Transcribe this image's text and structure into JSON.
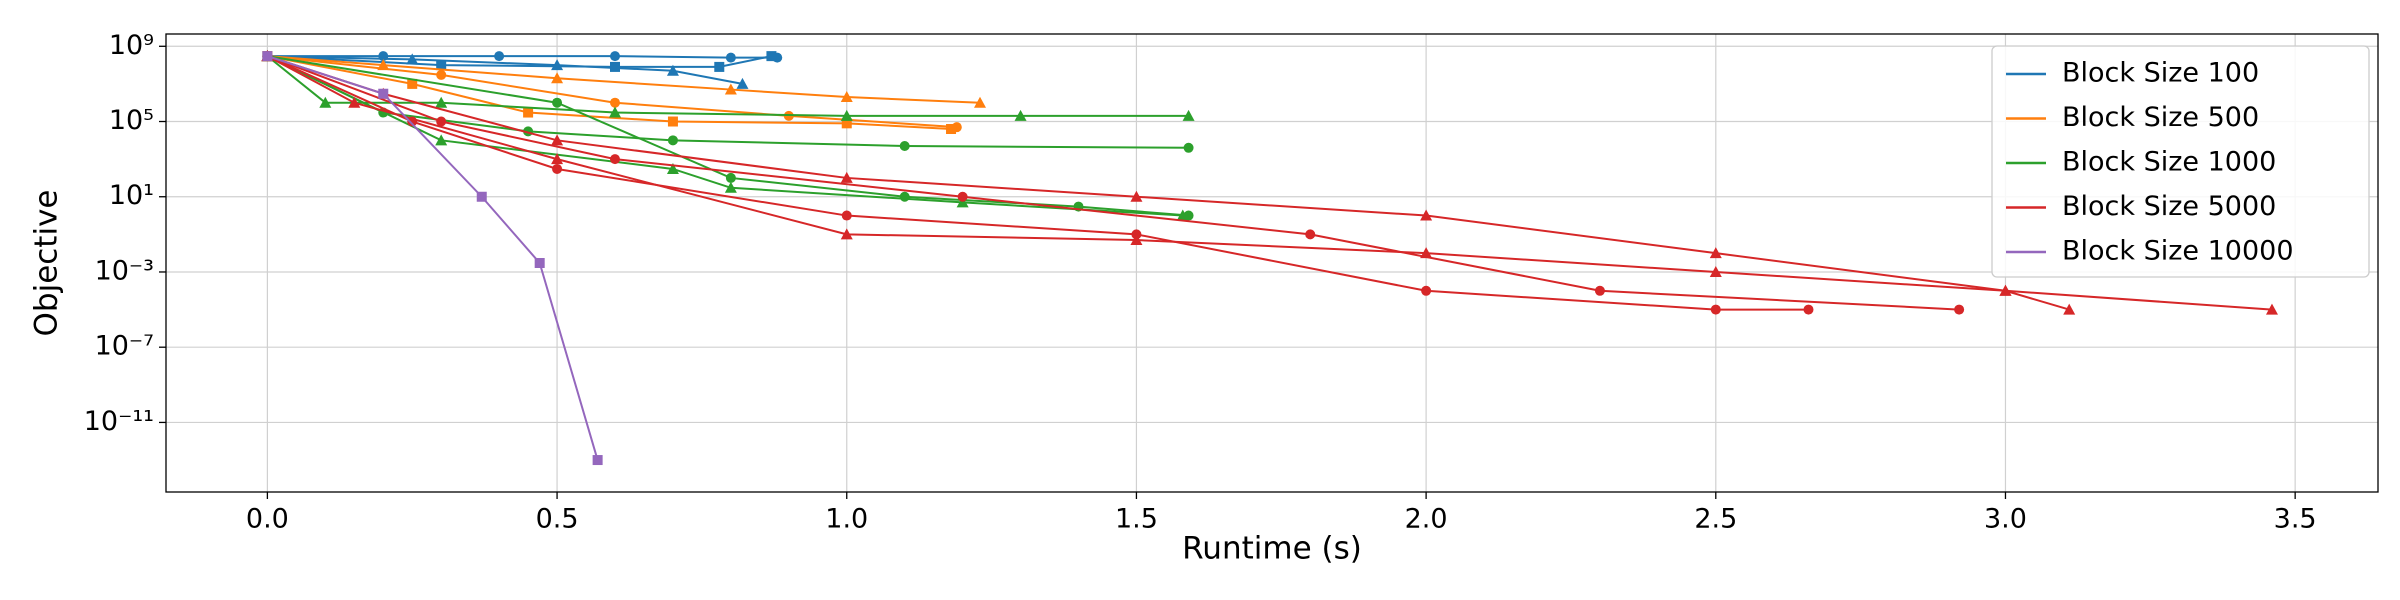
{
  "chart_data": {
    "type": "line",
    "xlabel": "Runtime (s)",
    "ylabel": "Objective",
    "xlim": [
      -0.175,
      3.643
    ],
    "ylim": [
      2e-15,
      4500000000.0
    ],
    "yscale": "log",
    "grid": true,
    "legend": "upper right",
    "xticks": [
      {
        "value": 0,
        "label": "0.0"
      },
      0.5,
      {
        "value": 1,
        "label": "1.0"
      },
      1.5,
      {
        "value": 2,
        "label": "2.0"
      },
      2.5,
      {
        "value": 3,
        "label": "3.0"
      },
      3.5
    ],
    "yticks": [
      {
        "value": 1000000000.0,
        "label": "10⁹"
      },
      {
        "value": 100000.0,
        "label": "10⁵"
      },
      {
        "value": 10,
        "label": "10¹"
      },
      {
        "value": 0.001,
        "label": "10⁻³"
      },
      {
        "value": 1e-07,
        "label": "10⁻⁷"
      },
      {
        "value": 1e-11,
        "label": "10⁻¹¹"
      }
    ],
    "series": [
      {
        "name": "Block Size 100",
        "color": "#1f77b4",
        "runs": [
          {
            "marker": "circle",
            "x": [
              0,
              0.2,
              0.4,
              0.6,
              0.8,
              0.88
            ],
            "values": [
              300000000,
              300000000,
              300000000,
              300000000,
              250000000,
              250000000
            ]
          },
          {
            "marker": "triangle",
            "x": [
              0,
              0.25,
              0.5,
              0.7,
              0.82
            ],
            "values": [
              300000000,
              200000000,
              100000000,
              50000000,
              10000000
            ]
          },
          {
            "marker": "square",
            "x": [
              0,
              0.3,
              0.6,
              0.78,
              0.87
            ],
            "values": [
              300000000,
              100000000,
              80000000,
              80000000,
              300000000
            ]
          }
        ]
      },
      {
        "name": "Block Size 500",
        "color": "#ff7f0e",
        "runs": [
          {
            "marker": "triangle",
            "x": [
              0,
              0.2,
              0.5,
              0.8,
              1.0,
              1.23
            ],
            "values": [
              300000000,
              100000000,
              20000000,
              5000000,
              2000000,
              1000000
            ]
          },
          {
            "marker": "circle",
            "x": [
              0,
              0.3,
              0.6,
              0.9,
              1.19
            ],
            "values": [
              300000000,
              30000000,
              1000000,
              200000,
              50000
            ]
          },
          {
            "marker": "square",
            "x": [
              0,
              0.25,
              0.45,
              0.7,
              1.0,
              1.18
            ],
            "values": [
              300000000,
              10000000,
              300000,
              100000,
              80000,
              40000
            ]
          }
        ]
      },
      {
        "name": "Block Size 1000",
        "color": "#2ca02c",
        "runs": [
          {
            "marker": "triangle",
            "x": [
              0,
              0.1,
              0.3,
              0.6,
              1.0,
              1.3,
              1.59
            ],
            "values": [
              300000000,
              1000000,
              1000000,
              300000,
              200000,
              200000,
              200000
            ]
          },
          {
            "marker": "circle",
            "x": [
              0,
              0.2,
              0.45,
              0.7,
              1.1,
              1.59
            ],
            "values": [
              300000000,
              300000,
              30000,
              10000,
              5000,
              4000
            ]
          },
          {
            "marker": "triangle",
            "x": [
              0,
              0.3,
              0.7,
              0.8,
              1.2,
              1.58
            ],
            "values": [
              300000000,
              10000,
              300,
              30,
              5,
              1
            ]
          },
          {
            "marker": "circle",
            "x": [
              0,
              0.5,
              0.8,
              1.1,
              1.4,
              1.59
            ],
            "values": [
              300000000,
              1000000,
              100,
              10,
              3,
              1
            ]
          }
        ]
      },
      {
        "name": "Block Size 5000",
        "color": "#d62728",
        "runs": [
          {
            "marker": "triangle",
            "x": [
              0,
              0.2,
              0.5,
              1.0,
              1.5,
              2.0,
              2.5,
              3.0,
              3.46
            ],
            "values": [
              300000000,
              3000000,
              10000,
              100,
              10,
              1,
              0.01,
              0.0001,
              1e-05
            ]
          },
          {
            "marker": "circle",
            "x": [
              0,
              0.25,
              0.5,
              1.0,
              1.5,
              2.0,
              2.5,
              2.66
            ],
            "values": [
              300000000,
              100000,
              300,
              1,
              0.1,
              0.0001,
              1e-05,
              1e-05
            ]
          },
          {
            "marker": "triangle",
            "x": [
              0,
              0.15,
              0.5,
              1.0,
              1.5,
              2.0,
              2.5,
              3.0,
              3.11
            ],
            "values": [
              300000000,
              1000000,
              1000,
              0.1,
              0.05,
              0.01,
              0.001,
              0.0001,
              1e-05
            ]
          },
          {
            "marker": "circle",
            "x": [
              0,
              0.3,
              0.6,
              1.2,
              1.8,
              2.3,
              2.92
            ],
            "values": [
              300000000,
              100000,
              1000,
              10,
              0.1,
              0.0001,
              1e-05
            ]
          }
        ]
      },
      {
        "name": "Block Size 10000",
        "color": "#9467bd",
        "runs": [
          {
            "marker": "square",
            "x": [
              0,
              0.2,
              0.37,
              0.47,
              0.57
            ],
            "values": [
              300000000,
              3000000,
              10,
              0.003,
              1e-13
            ]
          }
        ]
      }
    ]
  }
}
